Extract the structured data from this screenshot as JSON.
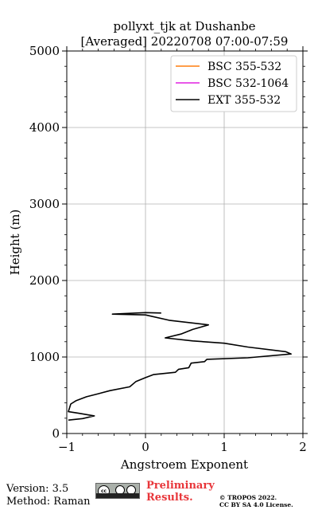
{
  "chart_data": {
    "type": "line",
    "title": "pollyxt_tjk at Dushanbe",
    "subtitle": "[Averaged] 20220708 07:00-07:59",
    "xlabel": "Angstroem Exponent",
    "ylabel": "Height (m)",
    "xlim": [
      -1,
      2
    ],
    "ylim": [
      0,
      5000
    ],
    "xticks": [
      "−1",
      "0",
      "1",
      "2"
    ],
    "yticks": [
      "0",
      "1000",
      "2000",
      "3000",
      "4000",
      "5000"
    ],
    "grid": true,
    "legend_position": "top-right",
    "series": [
      {
        "name": "BSC 355-532",
        "color": "#ff7f0e",
        "points": []
      },
      {
        "name": "BSC 532-1064",
        "color": "#e020e0",
        "points": []
      },
      {
        "name": "EXT 355-532",
        "color": "#000000",
        "points": [
          [
            -0.98,
            175
          ],
          [
            -0.8,
            195
          ],
          [
            -0.65,
            230
          ],
          [
            -0.85,
            265
          ],
          [
            -0.98,
            285
          ],
          [
            -0.95,
            385
          ],
          [
            -0.88,
            430
          ],
          [
            -0.75,
            480
          ],
          [
            -0.6,
            520
          ],
          [
            -0.45,
            560
          ],
          [
            -0.2,
            610
          ],
          [
            -0.12,
            680
          ],
          [
            0.0,
            730
          ],
          [
            0.1,
            770
          ],
          [
            0.38,
            800
          ],
          [
            0.42,
            840
          ],
          [
            0.55,
            860
          ],
          [
            0.58,
            920
          ],
          [
            0.75,
            940
          ],
          [
            0.78,
            970
          ],
          [
            1.3,
            990
          ],
          [
            1.85,
            1040
          ],
          [
            1.78,
            1070
          ],
          [
            1.3,
            1130
          ],
          [
            1.0,
            1180
          ],
          [
            0.6,
            1210
          ],
          [
            0.25,
            1250
          ],
          [
            0.45,
            1300
          ],
          [
            0.6,
            1360
          ],
          [
            0.8,
            1420
          ],
          [
            0.3,
            1480
          ],
          [
            0.0,
            1550
          ],
          [
            -0.42,
            1560
          ],
          [
            0.0,
            1580
          ],
          [
            0.2,
            1575
          ]
        ]
      }
    ]
  },
  "footer": {
    "version": "Version: 3.5",
    "method": "Method: Raman",
    "preliminary_line1": "Preliminary",
    "preliminary_line2": "Results.",
    "copyright_line1": "© TROPOS 2022.",
    "copyright_line2": "CC BY SA 4.0 License.",
    "license_icons": [
      "cc-icon",
      "by-icon",
      "sa-icon"
    ]
  }
}
